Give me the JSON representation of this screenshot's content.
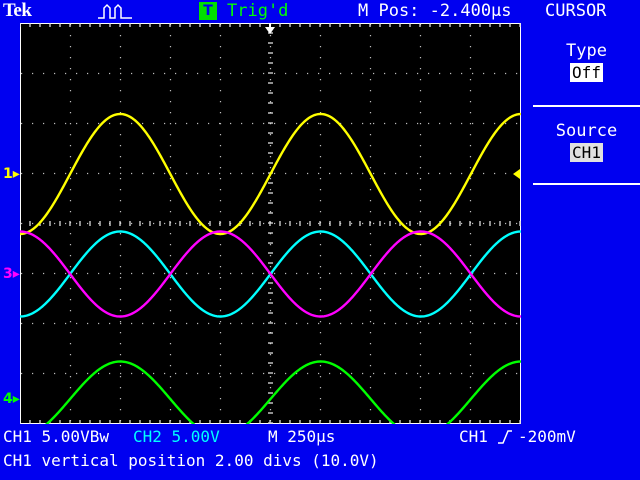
{
  "header": {
    "brand": "Tek",
    "acquisition_icon": "run-pulse-icon",
    "trigger_badge": "T",
    "trigger_status": "Trig'd",
    "main_position": "M Pos: -2.400μs",
    "menu_title": "CURSOR"
  },
  "side_menu": {
    "type_label": "Type",
    "type_value": "Off",
    "source_label": "Source",
    "source_value": "CH1"
  },
  "channel_markers": [
    {
      "label": "1",
      "color": "#ffff00"
    },
    {
      "label": "3",
      "color": "#ff00ff"
    },
    {
      "label": "4",
      "color": "#00ff00"
    }
  ],
  "trigger_level_marker_color": "#ffff00",
  "trigger_position_marker_color": "#ffffff",
  "waveforms": [
    {
      "channel": "CH1",
      "color": "#ffff00",
      "level_div": 5.0,
      "amp_div": 1.2,
      "phase_deg": 90
    },
    {
      "channel": "CH2",
      "color": "#00ffff",
      "level_div": 3.0,
      "amp_div": 0.85,
      "phase_deg": 90
    },
    {
      "channel": "CH3",
      "color": "#ff00ff",
      "level_div": 3.0,
      "amp_div": 0.85,
      "phase_deg": 270
    },
    {
      "channel": "CH4",
      "color": "#00ff00",
      "level_div": 0.5,
      "amp_div": 0.75,
      "phase_deg": 90
    }
  ],
  "cycles_on_screen": 2.5,
  "footer": {
    "ch1_scale": "CH1  5.00VBw",
    "ch2_scale": "CH2  5.00V",
    "timebase": "M 250μs",
    "trigger_source": "CH1",
    "trigger_level": "-200mV",
    "message": "CH1 vertical position 2.00 divs (10.0V)"
  },
  "colors": {
    "background": "#0000f0",
    "ch1": "#ffff00",
    "ch2": "#00ffff",
    "ch3": "#ff00ff",
    "ch4": "#00ff00"
  }
}
